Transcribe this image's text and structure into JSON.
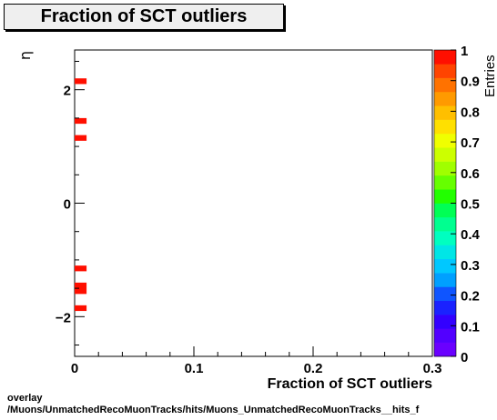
{
  "title": "Fraction of SCT outliers",
  "footer": {
    "line1": "overlay",
    "line2": "/Muons/UnmatchedRecoMuonTracks/hits/Muons_UnmatchedRecoMuonTracks__hits_f"
  },
  "chart_data": {
    "type": "heatmap",
    "xlabel": "Fraction of SCT outliers",
    "ylabel": "η",
    "zlabel": "Entries",
    "xlim": [
      0,
      0.3
    ],
    "ylim": [
      -2.7,
      2.7
    ],
    "zlim": [
      0,
      1
    ],
    "x_ticks": [
      "0",
      "0.1",
      "0.2",
      "0.3"
    ],
    "y_ticks": [
      "−2",
      "0",
      "2"
    ],
    "z_ticks": [
      "0",
      "0.1",
      "0.2",
      "0.3",
      "0.4",
      "0.5",
      "0.6",
      "0.7",
      "0.8",
      "0.9",
      "1"
    ],
    "cells": [
      {
        "x0": 0.0,
        "x1": 0.01,
        "y0": 2.1,
        "y1": 2.2,
        "value": 1
      },
      {
        "x0": 0.0,
        "x1": 0.01,
        "y0": 1.4,
        "y1": 1.5,
        "value": 1
      },
      {
        "x0": 0.0,
        "x1": 0.01,
        "y0": 1.1,
        "y1": 1.2,
        "value": 1
      },
      {
        "x0": 0.0,
        "x1": 0.01,
        "y0": -1.2,
        "y1": -1.1,
        "value": 1
      },
      {
        "x0": 0.0,
        "x1": 0.01,
        "y0": -1.6,
        "y1": -1.4,
        "value": 1
      },
      {
        "x0": 0.0,
        "x1": 0.01,
        "y0": -1.9,
        "y1": -1.8,
        "value": 1
      }
    ]
  }
}
